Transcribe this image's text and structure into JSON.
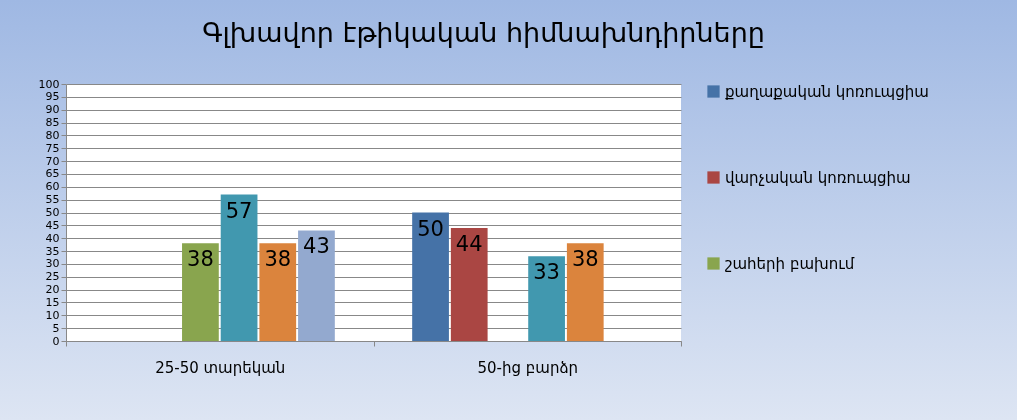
{
  "chart_data": {
    "type": "bar",
    "title": "Գլխավոր էթիկական հիմնախնդիրները",
    "categories": [
      "25-50 տարեկան",
      "50-ից բարձր"
    ],
    "series": [
      {
        "name": "քաղաքական կոռուպցիա",
        "color": "#4572a7",
        "values": [
          null,
          50
        ]
      },
      {
        "name": "վարչական կոռուպցիա",
        "color": "#aa4643",
        "values": [
          null,
          44
        ]
      },
      {
        "name": "շահերի բախում",
        "color": "#89a54e",
        "values": [
          38,
          null
        ]
      },
      {
        "color": "#4198af",
        "values": [
          57,
          33
        ]
      },
      {
        "color": "#db843d",
        "values": [
          38,
          38
        ]
      },
      {
        "color": "#93a9cf",
        "values": [
          43,
          null
        ]
      }
    ],
    "ylim": [
      0,
      100
    ],
    "yticks": [
      0,
      5,
      10,
      15,
      20,
      25,
      30,
      35,
      40,
      45,
      50,
      55,
      60,
      65,
      70,
      75,
      80,
      85,
      90,
      95,
      100
    ],
    "grid": "y",
    "legend": "right",
    "data_labels": true
  }
}
